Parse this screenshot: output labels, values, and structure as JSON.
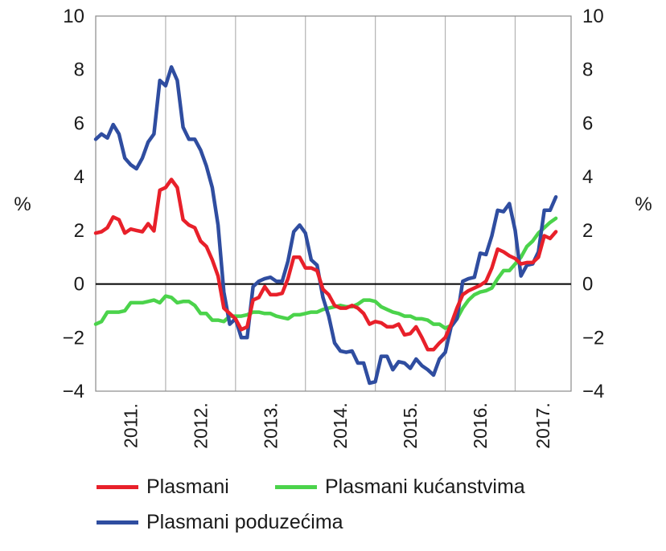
{
  "chart_data": {
    "type": "line",
    "y_unit_left": "%",
    "y_unit_right": "%",
    "ylim": [
      -4,
      10
    ],
    "yticks": [
      "−4",
      "−2",
      "0",
      "2",
      "4",
      "6",
      "8",
      "10"
    ],
    "ytick_values": [
      -4,
      -2,
      0,
      2,
      4,
      6,
      8,
      10
    ],
    "xlim": [
      2011.0,
      2017.8
    ],
    "x_categories": [
      "2011.",
      "2012.",
      "2013.",
      "2014.",
      "2015.",
      "2016.",
      "2017."
    ],
    "x_category_starts": [
      2011,
      2012,
      2013,
      2014,
      2015,
      2016,
      2017
    ],
    "grid": "vertical",
    "zero_line": true,
    "legend_position": "bottom",
    "colors": {
      "Plasmani": "#e8202a",
      "Plasmani kućanstvima": "#4bd34b",
      "Plasmani poduzećima": "#2f4da0"
    },
    "series": [
      {
        "name": "Plasmani",
        "color": "#e8202a",
        "x": [
          2011.0,
          2011.083,
          2011.167,
          2011.25,
          2011.333,
          2011.417,
          2011.5,
          2011.583,
          2011.667,
          2011.75,
          2011.833,
          2011.917,
          2012.0,
          2012.083,
          2012.167,
          2012.25,
          2012.333,
          2012.417,
          2012.5,
          2012.583,
          2012.667,
          2012.75,
          2012.833,
          2012.917,
          2013.0,
          2013.083,
          2013.167,
          2013.25,
          2013.333,
          2013.417,
          2013.5,
          2013.583,
          2013.667,
          2013.75,
          2013.833,
          2013.917,
          2014.0,
          2014.083,
          2014.167,
          2014.25,
          2014.333,
          2014.417,
          2014.5,
          2014.583,
          2014.667,
          2014.75,
          2014.833,
          2014.917,
          2015.0,
          2015.083,
          2015.167,
          2015.25,
          2015.333,
          2015.417,
          2015.5,
          2015.583,
          2015.667,
          2015.75,
          2015.833,
          2015.917,
          2016.0,
          2016.083,
          2016.167,
          2016.25,
          2016.333,
          2016.417,
          2016.5,
          2016.583,
          2016.667,
          2016.75,
          2016.833,
          2016.917,
          2017.0,
          2017.083,
          2017.167,
          2017.25,
          2017.333,
          2017.417,
          2017.5,
          2017.583
        ],
        "values": [
          1.9,
          1.95,
          2.1,
          2.5,
          2.4,
          1.9,
          2.05,
          2.0,
          1.95,
          2.25,
          1.98,
          3.5,
          3.6,
          3.9,
          3.6,
          2.4,
          2.2,
          2.1,
          1.6,
          1.4,
          0.9,
          0.3,
          -0.9,
          -1.1,
          -1.3,
          -1.7,
          -1.6,
          -0.6,
          -0.5,
          -0.1,
          -0.4,
          -0.4,
          -0.35,
          0.2,
          1.0,
          1.0,
          0.6,
          0.6,
          0.5,
          -0.2,
          -0.4,
          -0.8,
          -0.9,
          -0.9,
          -0.8,
          -0.9,
          -1.1,
          -1.5,
          -1.4,
          -1.45,
          -1.6,
          -1.6,
          -1.5,
          -1.9,
          -1.85,
          -1.6,
          -2.0,
          -2.45,
          -2.45,
          -2.2,
          -2.0,
          -1.5,
          -0.9,
          -0.4,
          -0.25,
          -0.15,
          -0.05,
          0.1,
          0.6,
          1.3,
          1.2,
          1.05,
          0.95,
          0.75,
          0.8,
          0.8,
          1.0,
          1.8,
          1.7,
          1.95
        ]
      },
      {
        "name": "Plasmani kućanstvima",
        "color": "#4bd34b",
        "x": [
          2011.0,
          2011.083,
          2011.167,
          2011.25,
          2011.333,
          2011.417,
          2011.5,
          2011.583,
          2011.667,
          2011.75,
          2011.833,
          2011.917,
          2012.0,
          2012.083,
          2012.167,
          2012.25,
          2012.333,
          2012.417,
          2012.5,
          2012.583,
          2012.667,
          2012.75,
          2012.833,
          2012.917,
          2013.0,
          2013.083,
          2013.167,
          2013.25,
          2013.333,
          2013.417,
          2013.5,
          2013.583,
          2013.667,
          2013.75,
          2013.833,
          2013.917,
          2014.0,
          2014.083,
          2014.167,
          2014.25,
          2014.333,
          2014.417,
          2014.5,
          2014.583,
          2014.667,
          2014.75,
          2014.833,
          2014.917,
          2015.0,
          2015.083,
          2015.167,
          2015.25,
          2015.333,
          2015.417,
          2015.5,
          2015.583,
          2015.667,
          2015.75,
          2015.833,
          2015.917,
          2016.0,
          2016.083,
          2016.167,
          2016.25,
          2016.333,
          2016.417,
          2016.5,
          2016.583,
          2016.667,
          2016.75,
          2016.833,
          2016.917,
          2017.0,
          2017.083,
          2017.167,
          2017.25,
          2017.333,
          2017.417,
          2017.5,
          2017.583
        ],
        "values": [
          -1.5,
          -1.4,
          -1.05,
          -1.05,
          -1.05,
          -1.0,
          -0.7,
          -0.7,
          -0.7,
          -0.65,
          -0.6,
          -0.7,
          -0.45,
          -0.5,
          -0.7,
          -0.65,
          -0.65,
          -0.8,
          -1.1,
          -1.1,
          -1.35,
          -1.35,
          -1.4,
          -1.2,
          -1.2,
          -1.2,
          -1.15,
          -1.05,
          -1.05,
          -1.1,
          -1.1,
          -1.2,
          -1.25,
          -1.3,
          -1.15,
          -1.15,
          -1.1,
          -1.05,
          -1.05,
          -0.95,
          -0.9,
          -0.85,
          -0.8,
          -0.85,
          -0.85,
          -0.75,
          -0.6,
          -0.6,
          -0.65,
          -0.85,
          -0.95,
          -1.05,
          -1.1,
          -1.2,
          -1.2,
          -1.3,
          -1.3,
          -1.35,
          -1.5,
          -1.5,
          -1.65,
          -1.55,
          -1.3,
          -0.9,
          -0.6,
          -0.4,
          -0.3,
          -0.25,
          -0.15,
          0.2,
          0.5,
          0.5,
          0.75,
          1.0,
          1.4,
          1.6,
          1.9,
          2.1,
          2.3,
          2.45
        ]
      },
      {
        "name": "Plasmani poduzećima",
        "color": "#2f4da0",
        "x": [
          2011.0,
          2011.083,
          2011.167,
          2011.25,
          2011.333,
          2011.417,
          2011.5,
          2011.583,
          2011.667,
          2011.75,
          2011.833,
          2011.917,
          2012.0,
          2012.083,
          2012.167,
          2012.25,
          2012.333,
          2012.417,
          2012.5,
          2012.583,
          2012.667,
          2012.75,
          2012.833,
          2012.917,
          2013.0,
          2013.083,
          2013.167,
          2013.25,
          2013.333,
          2013.417,
          2013.5,
          2013.583,
          2013.667,
          2013.75,
          2013.833,
          2013.917,
          2014.0,
          2014.083,
          2014.167,
          2014.25,
          2014.333,
          2014.417,
          2014.5,
          2014.583,
          2014.667,
          2014.75,
          2014.833,
          2014.917,
          2015.0,
          2015.083,
          2015.167,
          2015.25,
          2015.333,
          2015.417,
          2015.5,
          2015.583,
          2015.667,
          2015.75,
          2015.833,
          2015.917,
          2016.0,
          2016.083,
          2016.167,
          2016.25,
          2016.333,
          2016.417,
          2016.5,
          2016.583,
          2016.667,
          2016.75,
          2016.833,
          2016.917,
          2017.0,
          2017.083,
          2017.167,
          2017.25,
          2017.333,
          2017.417,
          2017.5,
          2017.583
        ],
        "values": [
          5.4,
          5.6,
          5.45,
          5.95,
          5.6,
          4.7,
          4.45,
          4.3,
          4.7,
          5.3,
          5.6,
          7.6,
          7.4,
          8.1,
          7.6,
          5.85,
          5.4,
          5.4,
          5.0,
          4.4,
          3.6,
          2.2,
          -0.3,
          -1.5,
          -1.3,
          -2.0,
          -2.0,
          -0.1,
          0.1,
          0.2,
          0.25,
          0.1,
          0.1,
          0.85,
          1.95,
          2.2,
          1.9,
          0.9,
          0.7,
          -0.5,
          -1.2,
          -2.2,
          -2.5,
          -2.55,
          -2.5,
          -2.95,
          -2.95,
          -3.7,
          -3.65,
          -2.7,
          -2.7,
          -3.2,
          -2.9,
          -2.95,
          -3.15,
          -2.8,
          -3.05,
          -3.2,
          -3.4,
          -2.8,
          -2.55,
          -1.6,
          -1.3,
          0.1,
          0.2,
          0.25,
          1.15,
          1.1,
          1.8,
          2.75,
          2.7,
          3.0,
          2.0,
          0.3,
          0.7,
          0.75,
          1.2,
          2.75,
          2.75,
          3.25
        ]
      }
    ]
  }
}
